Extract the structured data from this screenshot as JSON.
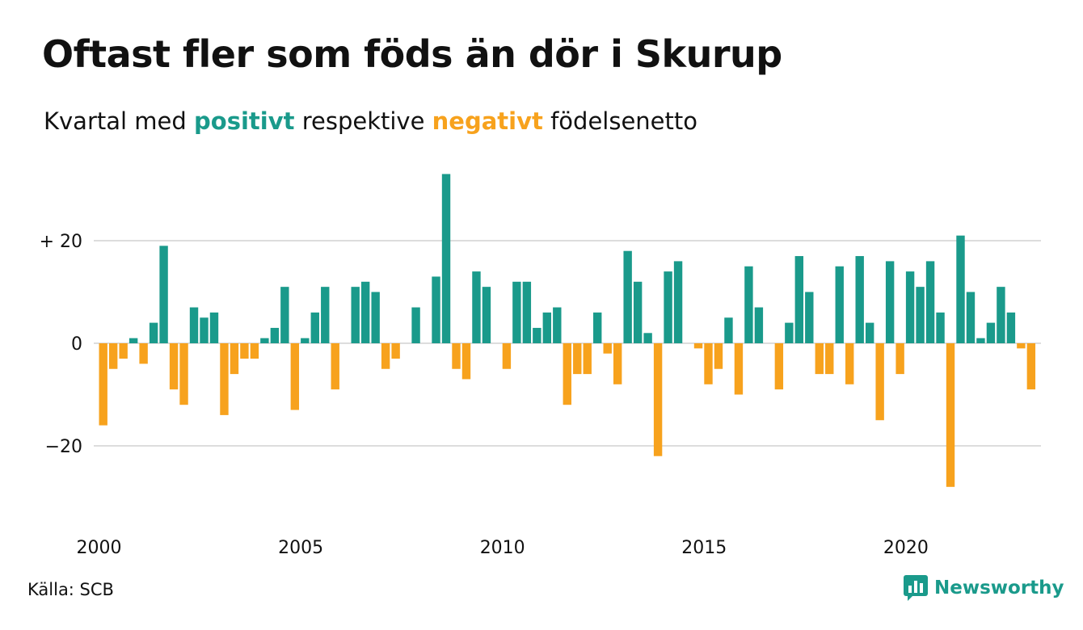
{
  "title": "Oftast fler som föds än dör i Skurup",
  "subtitle": {
    "part1": "Kvartal med ",
    "positive": "positivt",
    "part2": " respektive ",
    "negative": "negativt",
    "part3": " födelsenetto"
  },
  "colors": {
    "positive": "#1a9a8b",
    "negative": "#f7a21d",
    "grid": "#dddddd"
  },
  "source": "Källa: SCB",
  "brand": {
    "name": "Newsworthy",
    "icon": "bar-chart-logo-icon"
  },
  "chart_data": {
    "type": "bar",
    "x_start_year": 2000,
    "periods_per_year": 4,
    "x_tick_labels": [
      "2000",
      "2005",
      "2010",
      "2015",
      "2020"
    ],
    "y_ticks": [
      {
        "value": 20,
        "label": "+ 20"
      },
      {
        "value": 0,
        "label": "0"
      },
      {
        "value": -20,
        "label": "−20"
      }
    ],
    "ylim": [
      -30,
      35
    ],
    "grid": true,
    "values": [
      -16,
      -5,
      -3,
      1,
      -4,
      4,
      19,
      -9,
      -12,
      7,
      5,
      6,
      -14,
      -6,
      -3,
      -3,
      1,
      3,
      11,
      -13,
      1,
      6,
      11,
      -9,
      0,
      11,
      12,
      10,
      -5,
      -3,
      0,
      7,
      0,
      13,
      33,
      -5,
      -7,
      14,
      11,
      0,
      -5,
      12,
      12,
      3,
      6,
      7,
      -12,
      -6,
      -6,
      6,
      -2,
      -8,
      18,
      12,
      2,
      -22,
      14,
      16,
      0,
      -1,
      -8,
      -5,
      5,
      -10,
      15,
      7,
      0,
      -9,
      4,
      17,
      10,
      -6,
      -6,
      15,
      -8,
      17,
      4,
      -15,
      16,
      -6,
      14,
      11,
      16,
      6,
      -28,
      21,
      10,
      1,
      4,
      11,
      6,
      -1,
      -9
    ]
  }
}
